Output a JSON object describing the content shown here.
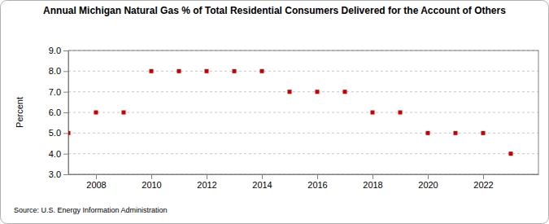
{
  "chart_data": {
    "type": "scatter",
    "title": "Annual Michigan Natural Gas % of Total Residential Consumers Delivered for the Account of Others",
    "y_label": "Percent",
    "source": "Source: U.S. Energy Information Administration",
    "x": [
      2007,
      2008,
      2009,
      2010,
      2011,
      2012,
      2013,
      2014,
      2015,
      2016,
      2017,
      2018,
      2019,
      2020,
      2021,
      2022,
      2023
    ],
    "values": [
      5,
      6,
      6,
      8,
      8,
      8,
      8,
      8,
      7,
      7,
      7,
      6,
      6,
      5,
      5,
      5,
      4
    ],
    "color": "#cc0000",
    "marker": "square",
    "xlim": [
      2007,
      2024
    ],
    "xticks": [
      2008,
      2010,
      2012,
      2014,
      2016,
      2018,
      2020,
      2022
    ],
    "ylim": [
      3,
      9
    ],
    "yticks": [
      {
        "value": 3,
        "label": "3.0"
      },
      {
        "value": 4,
        "label": "4.0"
      },
      {
        "value": 5,
        "label": "5.0"
      },
      {
        "value": 6,
        "label": "6.0"
      },
      {
        "value": 7,
        "label": "7.0"
      },
      {
        "value": 8,
        "label": "8.0"
      },
      {
        "value": 9,
        "label": "9.0"
      }
    ],
    "grid": true
  }
}
